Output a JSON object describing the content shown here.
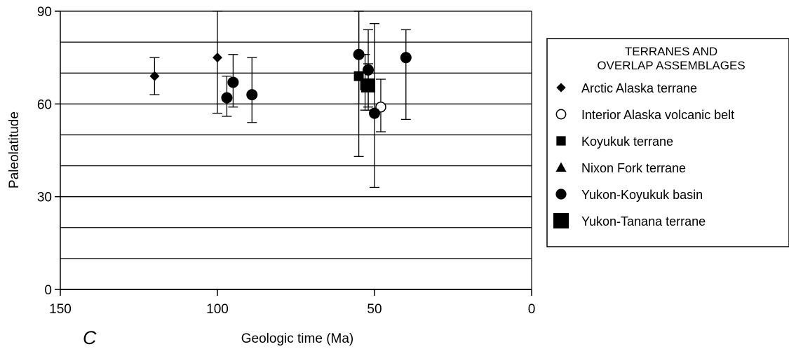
{
  "panel_label": "C",
  "chart_data": {
    "type": "scatter",
    "xlabel": "Geologic time (Ma)",
    "ylabel": "Paleolatitude",
    "xlim": [
      150,
      0
    ],
    "ylim": [
      0,
      90
    ],
    "x_reversed": true,
    "xticks": [
      150,
      100,
      50,
      0
    ],
    "yticks": [
      0,
      30,
      60,
      90
    ],
    "y_gridlines": [
      10,
      20,
      30,
      40,
      50,
      60,
      70,
      80,
      90
    ],
    "grid": "horizontal",
    "legend_position": "right",
    "legend_title": [
      "TERRANES AND",
      "OVERLAP ASSEMBLAGES"
    ],
    "series": [
      {
        "name": "Arctic Alaska terrane",
        "marker": "diamond",
        "points": [
          {
            "x": 120,
            "y": 69,
            "err_low": 63,
            "err_high": 75
          },
          {
            "x": 100,
            "y": 75,
            "err_low": 57,
            "err_high": 90
          }
        ]
      },
      {
        "name": "Interior Alaska volcanic belt",
        "marker": "open-circle",
        "points": [
          {
            "x": 48,
            "y": 59,
            "err_low": 51,
            "err_high": 68
          }
        ]
      },
      {
        "name": "Koyukuk terrane",
        "marker": "square",
        "points": [
          {
            "x": 55,
            "y": 69,
            "err_low": 43,
            "err_high": 90
          },
          {
            "x": 53,
            "y": 66,
            "err_low": 58,
            "err_high": 76
          }
        ]
      },
      {
        "name": "Nixon Fork terrane",
        "marker": "triangle",
        "points": []
      },
      {
        "name": "Yukon-Koyukuk basin",
        "marker": "filled-circle",
        "points": [
          {
            "x": 97,
            "y": 62,
            "err_low": 56,
            "err_high": 69
          },
          {
            "x": 95,
            "y": 67,
            "err_low": 59,
            "err_high": 76
          },
          {
            "x": 89,
            "y": 63,
            "err_low": 54,
            "err_high": 75
          },
          {
            "x": 55,
            "y": 76,
            "err_low": 60,
            "err_high": 90
          },
          {
            "x": 52,
            "y": 71,
            "err_low": 58,
            "err_high": 84
          },
          {
            "x": 50,
            "y": 57,
            "err_low": 33,
            "err_high": 86
          },
          {
            "x": 40,
            "y": 75,
            "err_low": 55,
            "err_high": 84
          }
        ]
      },
      {
        "name": "Yukon-Tanana terrane",
        "marker": "big-square",
        "points": [
          {
            "x": 52,
            "y": 66,
            "err_low": 59,
            "err_high": 73
          }
        ]
      }
    ]
  }
}
